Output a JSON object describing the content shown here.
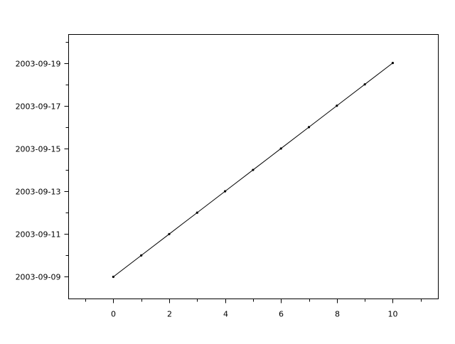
{
  "chart_data": {
    "type": "line",
    "title": "",
    "xlabel": "",
    "ylabel": "",
    "x": [
      0,
      1,
      2,
      3,
      4,
      5,
      6,
      7,
      8,
      9,
      10
    ],
    "y": [
      "2003-09-09",
      "2003-09-10",
      "2003-09-11",
      "2003-09-12",
      "2003-09-13",
      "2003-09-14",
      "2003-09-15",
      "2003-09-16",
      "2003-09-17",
      "2003-09-18",
      "2003-09-19"
    ],
    "xlim": [
      -1.6,
      11.63
    ],
    "ylim": [
      "2003-09-07T23:15",
      "2003-09-20T08:00"
    ],
    "x_ticks": [
      0,
      2,
      4,
      6,
      8,
      10
    ],
    "x_minor_ticks": [
      -1,
      1,
      3,
      5,
      7,
      9,
      11
    ],
    "y_ticks": [
      "2003-09-09",
      "2003-09-11",
      "2003-09-13",
      "2003-09-15",
      "2003-09-17",
      "2003-09-19"
    ],
    "y_minor_ticks": [
      "2003-09-08",
      "2003-09-10",
      "2003-09-12",
      "2003-09-14",
      "2003-09-16",
      "2003-09-18",
      "2003-09-20"
    ],
    "marker": "point",
    "grid": false,
    "line_color": "#000000"
  }
}
